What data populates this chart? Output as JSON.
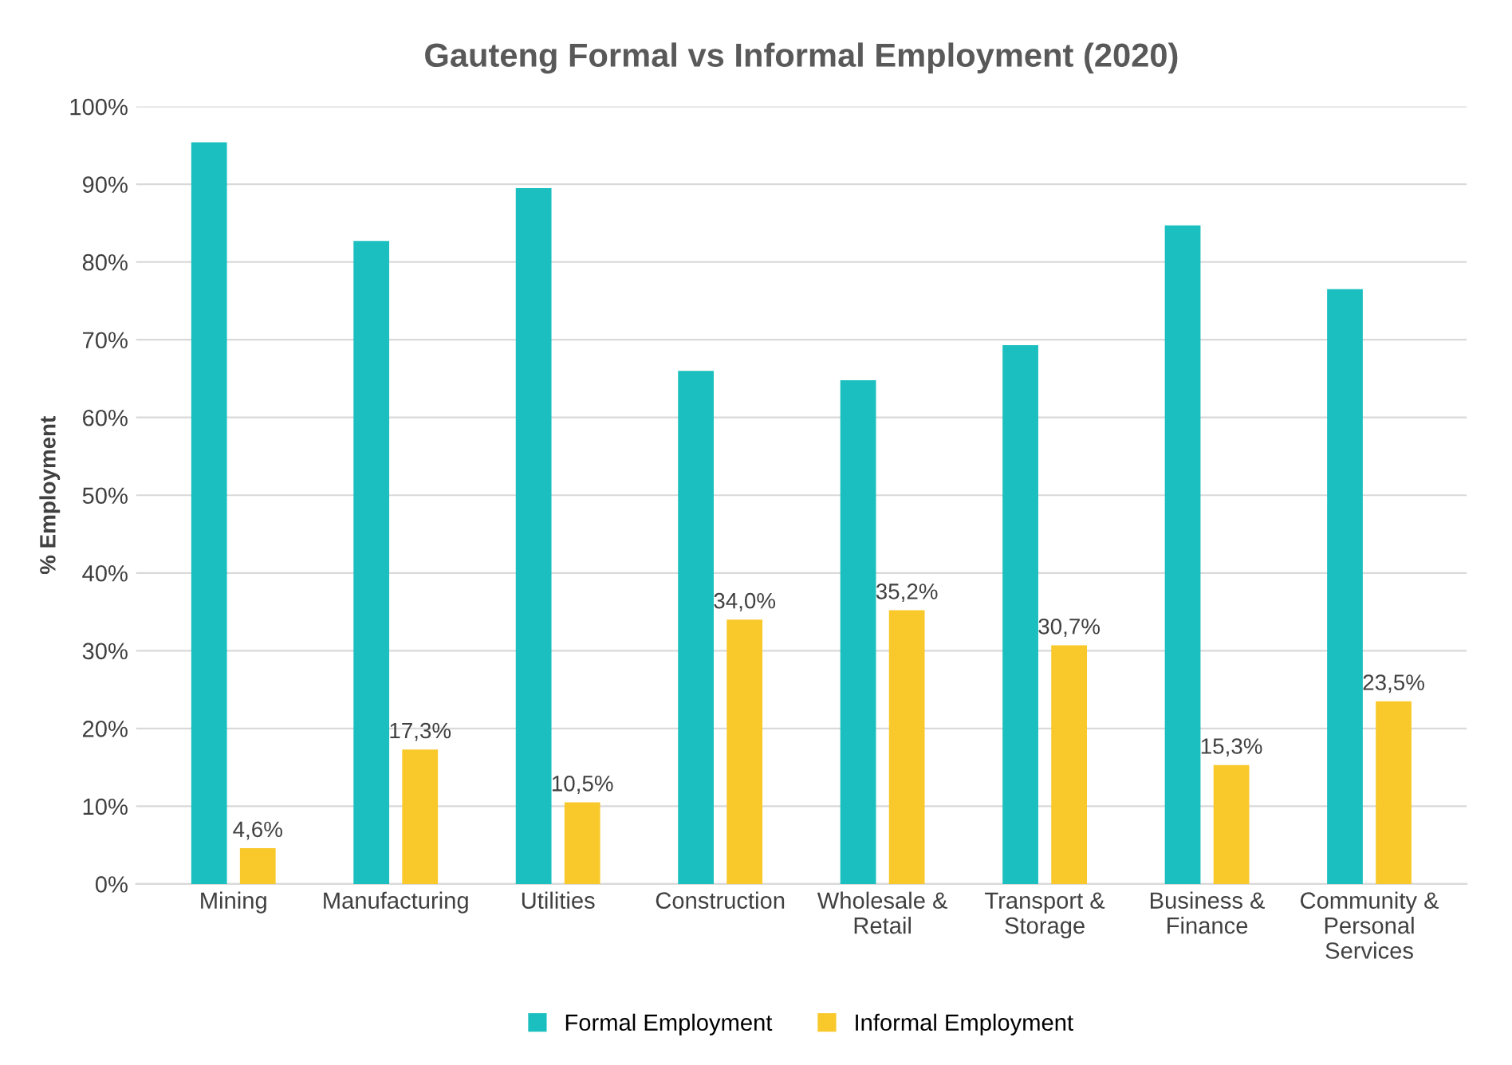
{
  "chart_data": {
    "type": "bar",
    "title": "Gauteng Formal vs Informal Employment (2020)",
    "ylabel": "% Employment",
    "categories": [
      "Mining",
      "Manufacturing",
      "Utilities",
      "Construction",
      "Wholesale &\nRetail",
      "Transport &\nStorage",
      "Business &\nFinance",
      "Community &\nPersonal\nServices"
    ],
    "series": [
      {
        "name": "Formal Employment",
        "color": "#1bbfbf",
        "values": [
          95.4,
          82.7,
          89.5,
          66.0,
          64.8,
          69.3,
          84.7,
          76.5
        ]
      },
      {
        "name": "Informal Employment",
        "color": "#f9c82b",
        "values": [
          4.6,
          17.3,
          10.5,
          34.0,
          35.2,
          30.7,
          15.3,
          23.5
        ],
        "value_labels": [
          "4,6%",
          "17,3%",
          "10,5%",
          "34,0%",
          "35,2%",
          "30,7%",
          "15,3%",
          "23,5%"
        ]
      }
    ],
    "ylim": [
      0,
      100
    ],
    "yticks": [
      {
        "value": 0,
        "label": "0%"
      },
      {
        "value": 10,
        "label": "10%"
      },
      {
        "value": 20,
        "label": "20%"
      },
      {
        "value": 30,
        "label": "30%"
      },
      {
        "value": 40,
        "label": "40%"
      },
      {
        "value": 50,
        "label": "50%"
      },
      {
        "value": 60,
        "label": "60%"
      },
      {
        "value": 70,
        "label": "70%"
      },
      {
        "value": 80,
        "label": "80%"
      },
      {
        "value": 90,
        "label": "90%"
      },
      {
        "value": 100,
        "label": "100%"
      }
    ],
    "grid": "y",
    "legend": "bottom"
  }
}
